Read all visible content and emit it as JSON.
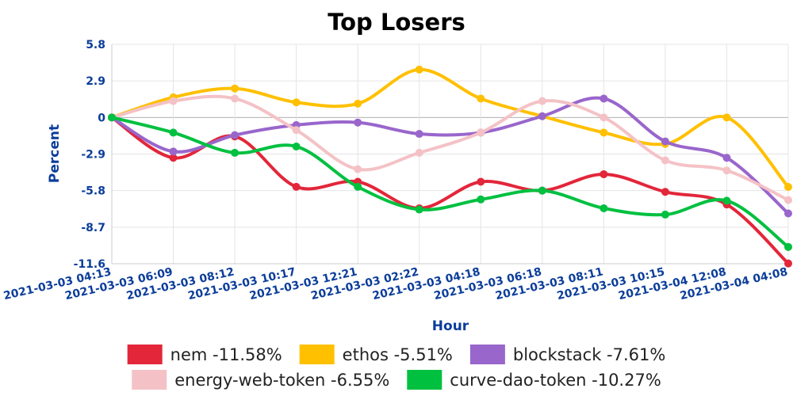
{
  "chart_data": {
    "type": "line",
    "title": "Top Losers",
    "xlabel": "Hour",
    "ylabel": "Percent",
    "x": [
      "2021-03-03 04:13",
      "2021-03-03 06:09",
      "2021-03-03 08:12",
      "2021-03-03 10:17",
      "2021-03-03 12:21",
      "2021-03-03 02:22",
      "2021-03-03 04:18",
      "2021-03-03 06:18",
      "2021-03-03 08:11",
      "2021-03-03 10:15",
      "2021-03-04 12:08",
      "2021-03-04 04:08"
    ],
    "yticks": [
      "5.8",
      "2.9",
      "0",
      "-2.9",
      "-5.8",
      "-8.7",
      "-11.6"
    ],
    "ylim": [
      -11.6,
      5.8
    ],
    "grid": true,
    "legend_position": "bottom",
    "series": [
      {
        "name": "nem",
        "legend": "nem -11.58%",
        "color": "#e3263a",
        "values": [
          0,
          -3.2,
          -1.5,
          -5.5,
          -5.1,
          -7.2,
          -5.1,
          -5.8,
          -4.5,
          -5.9,
          -6.9,
          -11.58
        ]
      },
      {
        "name": "ethos",
        "legend": "ethos -5.51%",
        "color": "#ffc000",
        "values": [
          0,
          1.6,
          2.3,
          1.2,
          1.1,
          3.8,
          1.5,
          0.1,
          -1.2,
          -2.1,
          0.0,
          -5.51
        ]
      },
      {
        "name": "blockstack",
        "legend": "blockstack -7.61%",
        "color": "#9966cc",
        "values": [
          0,
          -2.7,
          -1.4,
          -0.6,
          -0.4,
          -1.3,
          -1.2,
          0.1,
          1.5,
          -1.9,
          -3.2,
          -7.61
        ]
      },
      {
        "name": "energy-web-token",
        "legend": "energy-web-token -6.55%",
        "color": "#f4c2c6",
        "values": [
          0,
          1.3,
          1.5,
          -1.0,
          -4.1,
          -2.8,
          -1.2,
          1.3,
          0.0,
          -3.4,
          -4.2,
          -6.55
        ]
      },
      {
        "name": "curve-dao-token",
        "legend": "curve-dao-token -10.27%",
        "color": "#00c040",
        "values": [
          0,
          -1.2,
          -2.8,
          -2.3,
          -5.5,
          -7.3,
          -6.5,
          -5.8,
          -7.2,
          -7.7,
          -6.6,
          -10.27
        ]
      }
    ]
  }
}
